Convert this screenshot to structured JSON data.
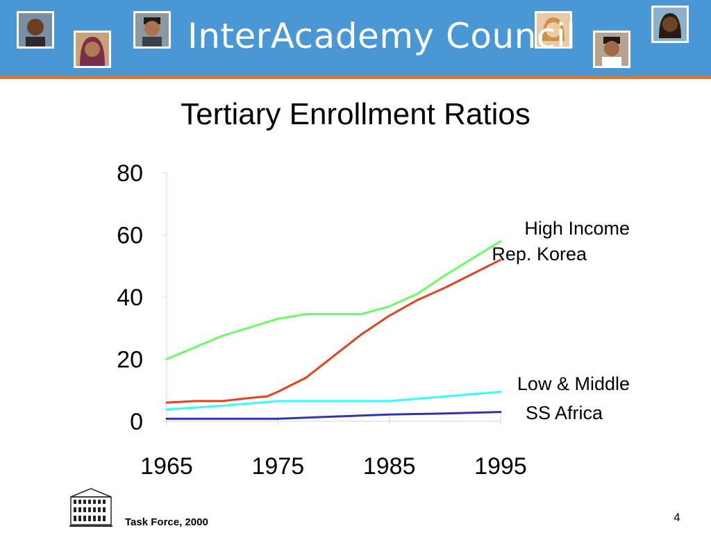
{
  "header": {
    "brand_name": "InterAcademy Council",
    "colors": {
      "banner": "#4a97d6",
      "rule": "#e07a1f"
    },
    "portrait_icons": [
      "person-portrait-icon",
      "person-portrait-icon",
      "person-portrait-icon",
      "person-portrait-icon",
      "person-portrait-icon",
      "person-portrait-icon"
    ]
  },
  "slide": {
    "title": "Tertiary Enrollment Ratios"
  },
  "chart_data": {
    "type": "line",
    "title": "Tertiary Enrollment Ratios",
    "xlabel": "",
    "ylabel": "",
    "xlim": [
      1965,
      1995
    ],
    "ylim": [
      0,
      80
    ],
    "x_ticks": [
      "1965",
      "1975",
      "1985",
      "1995"
    ],
    "y_ticks": [
      "0",
      "20",
      "40",
      "60",
      "80"
    ],
    "grid": false,
    "legend": "direct labels at line ends (right)",
    "series": [
      {
        "name": "High Income",
        "color": "#66ff66",
        "x": [
          1965,
          1970,
          1975,
          1977.5,
          1980,
          1982.5,
          1985,
          1987.5,
          1990,
          1995
        ],
        "values": [
          20,
          27.5,
          33,
          34.5,
          34.5,
          34.5,
          37,
          41,
          47,
          58
        ]
      },
      {
        "name": "Rep. Korea",
        "color": "#e8401c",
        "x": [
          1965,
          1967.5,
          1970,
          1972.5,
          1974,
          1975,
          1977.5,
          1980,
          1982.5,
          1985,
          1987.5,
          1990,
          1995
        ],
        "values": [
          6,
          6.5,
          6.5,
          7.5,
          8,
          9.5,
          14,
          21,
          28,
          34,
          39,
          43,
          52
        ]
      },
      {
        "name": "Low & Middle",
        "color": "#33ffff",
        "x": [
          1965,
          1970,
          1975,
          1980,
          1985,
          1990,
          1995
        ],
        "values": [
          3.8,
          5,
          6.5,
          6.5,
          6.5,
          8,
          9.5
        ]
      },
      {
        "name": "SS Africa",
        "color": "#3333aa",
        "x": [
          1965,
          1970,
          1975,
          1980,
          1985,
          1990,
          1995
        ],
        "values": [
          0.8,
          0.8,
          0.8,
          1.5,
          2.2,
          2.5,
          3
        ]
      }
    ]
  },
  "footer": {
    "credit": "Task Force, 2000",
    "page_number": "4",
    "logo_icon": "academy-building-icon"
  }
}
